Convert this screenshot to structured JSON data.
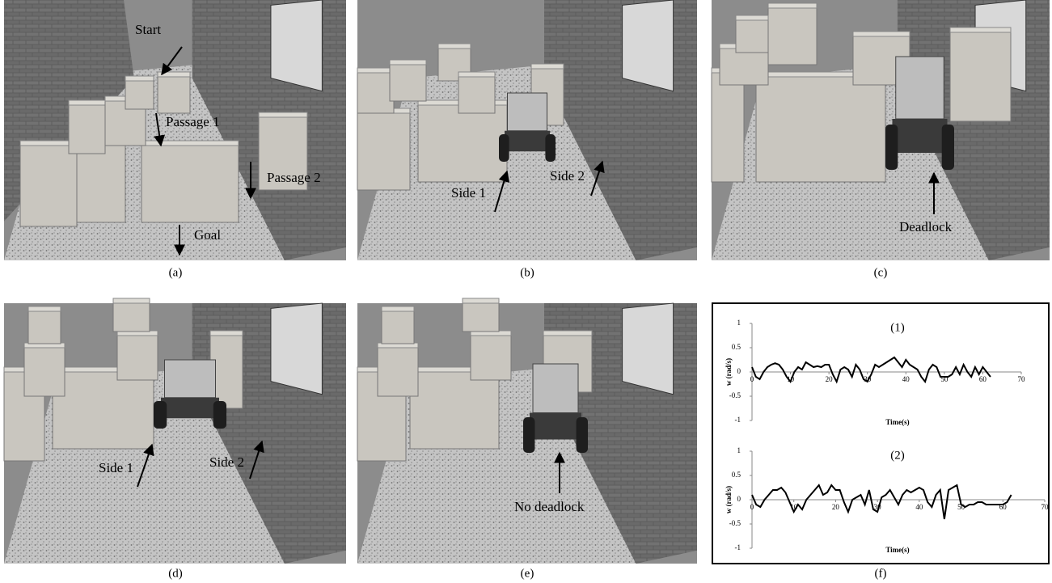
{
  "panels": [
    {
      "caption": "(a)",
      "labels": [
        "Start",
        "Passage 1",
        "Passage 2",
        "Goal"
      ]
    },
    {
      "caption": "(b)",
      "labels": [
        "Side 1",
        "Side 2"
      ]
    },
    {
      "caption": "(c)",
      "labels": [
        "Deadlock"
      ]
    },
    {
      "caption": "(d)",
      "labels": [
        "Side 1",
        "Side 2"
      ]
    },
    {
      "caption": "(e)",
      "labels": [
        "No deadlock"
      ]
    },
    {
      "caption": "(f)"
    }
  ],
  "chart_data": [
    {
      "type": "line",
      "title": "(1)",
      "x_label": "Time(s)",
      "y_label": "w (rad/s)",
      "x": [
        0,
        1,
        2,
        3,
        4,
        5,
        6,
        7,
        8,
        9,
        10,
        11,
        12,
        13,
        14,
        15,
        16,
        17,
        18,
        19,
        20,
        21,
        22,
        23,
        24,
        25,
        26,
        27,
        28,
        29,
        30,
        31,
        32,
        33,
        34,
        35,
        36,
        37,
        38,
        39,
        40,
        41,
        42,
        43,
        44,
        45,
        46,
        47,
        48,
        49,
        50,
        51,
        52,
        53,
        54,
        55,
        56,
        57,
        58,
        59,
        60,
        61,
        62
      ],
      "series": [
        {
          "color": "#000000",
          "values": [
            0.1,
            -0.1,
            -0.15,
            0,
            0.1,
            0.15,
            0.18,
            0.15,
            0.05,
            -0.1,
            -0.2,
            0,
            0.1,
            0.05,
            0.2,
            0.15,
            0.1,
            0.12,
            0.1,
            0.15,
            0.15,
            -0.05,
            -0.2,
            0.05,
            0.1,
            0.05,
            -0.1,
            0.15,
            0.05,
            -0.15,
            -0.2,
            -0.05,
            0.15,
            0.1,
            0.15,
            0.2,
            0.25,
            0.3,
            0.2,
            0.1,
            0.25,
            0.15,
            0.1,
            0.05,
            -0.1,
            -0.2,
            0.05,
            0.15,
            0.1,
            -0.1,
            -0.1,
            -0.1,
            -0.05,
            0.1,
            -0.05,
            0.15,
            0,
            -0.1,
            0.1,
            -0.05,
            0.1,
            0,
            -0.1
          ]
        }
      ],
      "xlim": [
        0,
        70
      ],
      "xticks": [
        0,
        10,
        20,
        30,
        40,
        50,
        60,
        70
      ],
      "ylim": [
        -1,
        1
      ],
      "yticks": [
        -1,
        -0.5,
        0,
        0.5,
        1
      ]
    },
    {
      "type": "line",
      "title": "(2)",
      "x_label": "Time(s)",
      "y_label": "w (rad/s)",
      "x": [
        0,
        1,
        2,
        3,
        4,
        5,
        6,
        7,
        8,
        9,
        10,
        11,
        12,
        13,
        14,
        15,
        16,
        17,
        18,
        19,
        20,
        21,
        22,
        23,
        24,
        25,
        26,
        27,
        28,
        29,
        30,
        31,
        32,
        33,
        34,
        35,
        36,
        37,
        38,
        39,
        40,
        41,
        42,
        43,
        44,
        45,
        46,
        47,
        48,
        49,
        50,
        51,
        52,
        53,
        54,
        55,
        56,
        57,
        58,
        59,
        60,
        61,
        62
      ],
      "series": [
        {
          "color": "#000000",
          "values": [
            0.1,
            -0.1,
            -0.15,
            0,
            0.1,
            0.2,
            0.2,
            0.25,
            0.15,
            -0.05,
            -0.25,
            -0.1,
            -0.2,
            0,
            0.1,
            0.2,
            0.3,
            0.1,
            0.15,
            0.3,
            0.2,
            0.2,
            -0.05,
            -0.25,
            0,
            0.05,
            0.1,
            -0.1,
            0.2,
            -0.2,
            -0.25,
            0.05,
            0.1,
            0.2,
            0.05,
            -0.1,
            0.1,
            0.2,
            0.15,
            0.2,
            0.25,
            0.2,
            -0.05,
            -0.15,
            0.1,
            0.2,
            -0.4,
            0.2,
            0.25,
            0.3,
            -0.1,
            -0.15,
            -0.1,
            -0.1,
            -0.05,
            -0.05,
            -0.1,
            -0.1,
            -0.1,
            -0.1,
            -0.1,
            -0.05,
            0.1
          ]
        }
      ],
      "xlim": [
        0,
        70
      ],
      "xticks": [
        0,
        10,
        20,
        30,
        40,
        50,
        60,
        70
      ],
      "ylim": [
        -1,
        1
      ],
      "yticks": [
        -1,
        -0.5,
        0,
        0.5,
        1
      ]
    }
  ]
}
